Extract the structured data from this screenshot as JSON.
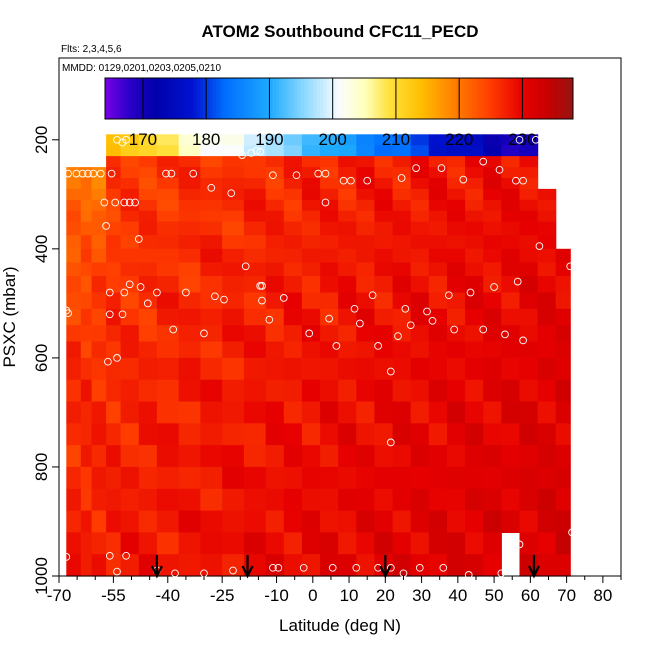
{
  "chart_data": {
    "type": "heatmap",
    "title": "ATOM2 Southbound CFC11_PECD",
    "flights_label": "Flts: 2,3,4,5,6",
    "dates_label": "MMDD: 0129,0201,0203,0205,0210",
    "xlabel": "Latitude (deg N)",
    "ylabel": "PSXC (mbar)",
    "xlim": [
      -70,
      85
    ],
    "ylim": [
      1000,
      50
    ],
    "x_ticks": [
      -70,
      -55,
      -40,
      -25,
      -10,
      0,
      10,
      20,
      30,
      40,
      50,
      60,
      70,
      80
    ],
    "x_tick_labels": [
      "-70",
      "-55",
      "-40",
      "-25",
      "-10",
      "0",
      "10",
      "20",
      "30",
      "40",
      "50",
      "60",
      "70",
      "80"
    ],
    "x_minor_ticks": [
      -65,
      -60,
      -50,
      -45,
      -35,
      -30,
      -20,
      -15,
      -5,
      5,
      15,
      25,
      35,
      45,
      55,
      65,
      75,
      85
    ],
    "y_ticks": [
      200,
      400,
      600,
      800,
      1000
    ],
    "y_tick_labels": [
      "200",
      "400",
      "600",
      "800",
      "1000"
    ],
    "colorbar": {
      "range": [
        164,
        238
      ],
      "ticks": [
        170,
        180,
        190,
        200,
        210,
        220,
        230
      ],
      "tick_labels": [
        "170",
        "180",
        "190",
        "200",
        "210",
        "220",
        "230"
      ]
    },
    "field_extent": {
      "lat": [
        -68,
        71
      ],
      "p_top": 190,
      "p_bottom": 1000
    },
    "arrow_latitudes": [
      -43,
      -18,
      20,
      61
    ],
    "profile_columns_lat": [
      -68,
      -64,
      -61,
      -57,
      -53,
      -48,
      -43,
      -37,
      -31,
      -25,
      -19,
      -13,
      -8,
      -3,
      2,
      7,
      12,
      17,
      22,
      27,
      32,
      37,
      42,
      47,
      52,
      57,
      62,
      67,
      71
    ],
    "sample_points": [
      {
        "lat": -67.5,
        "p": 262
      },
      {
        "lat": -65.2,
        "p": 262
      },
      {
        "lat": -63.5,
        "p": 262
      },
      {
        "lat": -62.0,
        "p": 262
      },
      {
        "lat": -60.5,
        "p": 262
      },
      {
        "lat": -58.5,
        "p": 262
      },
      {
        "lat": -55.5,
        "p": 262
      },
      {
        "lat": -54.0,
        "p": 200
      },
      {
        "lat": -52.5,
        "p": 205
      },
      {
        "lat": -51.5,
        "p": 200
      },
      {
        "lat": -57.5,
        "p": 315
      },
      {
        "lat": -54.5,
        "p": 315
      },
      {
        "lat": -52.0,
        "p": 315
      },
      {
        "lat": -50.5,
        "p": 315
      },
      {
        "lat": -49.0,
        "p": 315
      },
      {
        "lat": -57.0,
        "p": 358
      },
      {
        "lat": -48.0,
        "p": 382
      },
      {
        "lat": -50.5,
        "p": 465
      },
      {
        "lat": -47.5,
        "p": 470
      },
      {
        "lat": -52.0,
        "p": 480
      },
      {
        "lat": -56.0,
        "p": 480
      },
      {
        "lat": -56.0,
        "p": 520
      },
      {
        "lat": -52.5,
        "p": 520
      },
      {
        "lat": -45.5,
        "p": 500
      },
      {
        "lat": -68.0,
        "p": 513
      },
      {
        "lat": -67.5,
        "p": 518
      },
      {
        "lat": -54.0,
        "p": 600
      },
      {
        "lat": -56.5,
        "p": 607
      },
      {
        "lat": -40.5,
        "p": 262
      },
      {
        "lat": -39.0,
        "p": 262
      },
      {
        "lat": -33.0,
        "p": 262
      },
      {
        "lat": -28.0,
        "p": 288
      },
      {
        "lat": -22.5,
        "p": 298
      },
      {
        "lat": -19.5,
        "p": 228
      },
      {
        "lat": -17.0,
        "p": 224
      },
      {
        "lat": -15.5,
        "p": 220
      },
      {
        "lat": -14.5,
        "p": 222
      },
      {
        "lat": -43.0,
        "p": 480
      },
      {
        "lat": -35.0,
        "p": 480
      },
      {
        "lat": -27.0,
        "p": 487
      },
      {
        "lat": -24.5,
        "p": 493
      },
      {
        "lat": -18.5,
        "p": 432
      },
      {
        "lat": -14.5,
        "p": 468
      },
      {
        "lat": -14.0,
        "p": 468
      },
      {
        "lat": -14.0,
        "p": 495
      },
      {
        "lat": -8.0,
        "p": 490
      },
      {
        "lat": -12.0,
        "p": 530
      },
      {
        "lat": -38.5,
        "p": 548
      },
      {
        "lat": -30.0,
        "p": 555
      },
      {
        "lat": -1.0,
        "p": 555
      },
      {
        "lat": 4.5,
        "p": 528
      },
      {
        "lat": 6.5,
        "p": 578
      },
      {
        "lat": -11.0,
        "p": 265
      },
      {
        "lat": -4.5,
        "p": 265
      },
      {
        "lat": 1.5,
        "p": 262
      },
      {
        "lat": 3.5,
        "p": 262
      },
      {
        "lat": 3.5,
        "p": 315
      },
      {
        "lat": 8.5,
        "p": 275
      },
      {
        "lat": 10.5,
        "p": 275
      },
      {
        "lat": 15.0,
        "p": 275
      },
      {
        "lat": 24.5,
        "p": 270
      },
      {
        "lat": 28.5,
        "p": 252
      },
      {
        "lat": 35.5,
        "p": 252
      },
      {
        "lat": 41.5,
        "p": 273
      },
      {
        "lat": 47.0,
        "p": 240
      },
      {
        "lat": 51.5,
        "p": 255
      },
      {
        "lat": 56.0,
        "p": 275
      },
      {
        "lat": 58.0,
        "p": 275
      },
      {
        "lat": 57.0,
        "p": 200
      },
      {
        "lat": 61.5,
        "p": 200
      },
      {
        "lat": 11.5,
        "p": 510
      },
      {
        "lat": 13.0,
        "p": 537
      },
      {
        "lat": 16.5,
        "p": 485
      },
      {
        "lat": 18.0,
        "p": 578
      },
      {
        "lat": 21.5,
        "p": 625
      },
      {
        "lat": 23.5,
        "p": 560
      },
      {
        "lat": 25.5,
        "p": 510
      },
      {
        "lat": 27.0,
        "p": 540
      },
      {
        "lat": 31.5,
        "p": 515
      },
      {
        "lat": 33.0,
        "p": 532
      },
      {
        "lat": 37.5,
        "p": 485
      },
      {
        "lat": 39.0,
        "p": 548
      },
      {
        "lat": 43.5,
        "p": 480
      },
      {
        "lat": 47.0,
        "p": 548
      },
      {
        "lat": 50.0,
        "p": 470
      },
      {
        "lat": 53.0,
        "p": 557
      },
      {
        "lat": 56.5,
        "p": 460
      },
      {
        "lat": 58.0,
        "p": 568
      },
      {
        "lat": 62.5,
        "p": 395
      },
      {
        "lat": 71.0,
        "p": 432
      },
      {
        "lat": 21.5,
        "p": 755
      },
      {
        "lat": 57.0,
        "p": 942
      },
      {
        "lat": 71.5,
        "p": 920
      },
      {
        "lat": -68.0,
        "p": 965
      },
      {
        "lat": -56.0,
        "p": 963
      },
      {
        "lat": -51.5,
        "p": 963
      },
      {
        "lat": -54.0,
        "p": 992
      },
      {
        "lat": -43.0,
        "p": 990
      },
      {
        "lat": -38.0,
        "p": 995
      },
      {
        "lat": -30.0,
        "p": 995
      },
      {
        "lat": -22.0,
        "p": 990
      },
      {
        "lat": -11.0,
        "p": 985
      },
      {
        "lat": -9.5,
        "p": 985
      },
      {
        "lat": -2.5,
        "p": 985
      },
      {
        "lat": 5.5,
        "p": 985
      },
      {
        "lat": 12.0,
        "p": 985
      },
      {
        "lat": 18.0,
        "p": 985
      },
      {
        "lat": 21.5,
        "p": 985
      },
      {
        "lat": 25.0,
        "p": 995
      },
      {
        "lat": 29.5,
        "p": 985
      },
      {
        "lat": 36.0,
        "p": 985
      },
      {
        "lat": 43.0,
        "p": 998
      },
      {
        "lat": 52.0,
        "p": 995
      }
    ]
  }
}
